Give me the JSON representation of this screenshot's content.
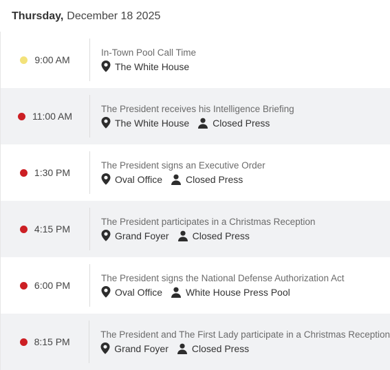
{
  "header": {
    "weekday": "Thursday,",
    "date": "December 18 2025"
  },
  "colors": {
    "call_time": "#f3e27a",
    "event": "#cc1f24"
  },
  "icons": {
    "location": "map-pin-icon",
    "press": "person-icon"
  },
  "events": [
    {
      "time": "9:00 AM",
      "dot": "yellow",
      "title": "In-Town Pool Call Time",
      "location": "The White House",
      "press": ""
    },
    {
      "time": "11:00 AM",
      "dot": "red",
      "title": "The President receives his Intelligence Briefing",
      "location": "The White House",
      "press": "Closed Press"
    },
    {
      "time": "1:30 PM",
      "dot": "red",
      "title": "The President signs an Executive Order",
      "location": "Oval Office",
      "press": "Closed Press"
    },
    {
      "time": "4:15 PM",
      "dot": "red",
      "title": "The President participates in a Christmas Reception",
      "location": "Grand Foyer",
      "press": "Closed Press"
    },
    {
      "time": "6:00 PM",
      "dot": "red",
      "title": "The President signs the National Defense Authorization Act",
      "location": "Oval Office",
      "press": "White House Press Pool"
    },
    {
      "time": "8:15 PM",
      "dot": "red",
      "title": "The President and The First Lady participate in a Christmas Reception",
      "location": "Grand Foyer",
      "press": "Closed Press"
    }
  ]
}
